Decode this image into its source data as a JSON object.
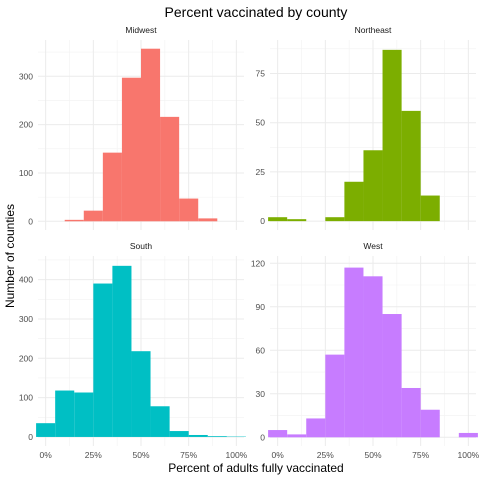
{
  "chart_data": {
    "type": "bar",
    "title": "Percent vaccinated by county",
    "xlabel": "Percent of adults fully vaccinated",
    "ylabel": "Number of counties",
    "x_tick_labels": [
      "0%",
      "25%",
      "50%",
      "75%",
      "100%"
    ],
    "x_ticks": [
      0,
      25,
      50,
      75,
      100
    ],
    "xlim": [
      -4,
      104
    ],
    "bin_width": 10,
    "grid": true,
    "legend": "none",
    "panels": [
      {
        "name": "Midwest",
        "color": "#F8766D",
        "ylim": [
          -18,
          375
        ],
        "y_ticks": [
          0,
          100,
          200,
          300
        ],
        "y_tick_labels": [
          "0",
          "100",
          "200",
          "300"
        ],
        "bins": [
          {
            "x0": 0,
            "x1": 10,
            "count": 0
          },
          {
            "x0": 10,
            "x1": 20,
            "count": 3
          },
          {
            "x0": 20,
            "x1": 30,
            "count": 22
          },
          {
            "x0": 30,
            "x1": 40,
            "count": 142
          },
          {
            "x0": 40,
            "x1": 50,
            "count": 297
          },
          {
            "x0": 50,
            "x1": 60,
            "count": 357
          },
          {
            "x0": 60,
            "x1": 70,
            "count": 216
          },
          {
            "x0": 70,
            "x1": 80,
            "count": 47
          },
          {
            "x0": 80,
            "x1": 90,
            "count": 6
          },
          {
            "x0": 90,
            "x1": 100,
            "count": 0
          }
        ]
      },
      {
        "name": "Northeast",
        "color": "#7CAE00",
        "ylim": [
          -4.5,
          92
        ],
        "y_ticks": [
          0,
          25,
          50,
          75
        ],
        "y_tick_labels": [
          "0",
          "25",
          "50",
          "75"
        ],
        "bins": [
          {
            "x0": -5,
            "x1": 5,
            "count": 2
          },
          {
            "x0": 5,
            "x1": 15,
            "count": 1
          },
          {
            "x0": 15,
            "x1": 25,
            "count": 0
          },
          {
            "x0": 25,
            "x1": 35,
            "count": 2
          },
          {
            "x0": 35,
            "x1": 45,
            "count": 20
          },
          {
            "x0": 45,
            "x1": 55,
            "count": 36
          },
          {
            "x0": 55,
            "x1": 65,
            "count": 87
          },
          {
            "x0": 65,
            "x1": 75,
            "count": 56
          },
          {
            "x0": 75,
            "x1": 85,
            "count": 13
          }
        ]
      },
      {
        "name": "South",
        "color": "#00BFC4",
        "ylim": [
          -23,
          460
        ],
        "y_ticks": [
          0,
          100,
          200,
          300,
          400
        ],
        "y_tick_labels": [
          "0",
          "100",
          "200",
          "300",
          "400"
        ],
        "bins": [
          {
            "x0": -5,
            "x1": 5,
            "count": 35
          },
          {
            "x0": 5,
            "x1": 15,
            "count": 118
          },
          {
            "x0": 15,
            "x1": 25,
            "count": 113
          },
          {
            "x0": 25,
            "x1": 35,
            "count": 390
          },
          {
            "x0": 35,
            "x1": 45,
            "count": 435
          },
          {
            "x0": 45,
            "x1": 55,
            "count": 218
          },
          {
            "x0": 55,
            "x1": 65,
            "count": 78
          },
          {
            "x0": 65,
            "x1": 75,
            "count": 15
          },
          {
            "x0": 75,
            "x1": 85,
            "count": 5
          },
          {
            "x0": 85,
            "x1": 95,
            "count": 2
          },
          {
            "x0": 95,
            "x1": 105,
            "count": 1
          }
        ]
      },
      {
        "name": "West",
        "color": "#C77CFF",
        "ylim": [
          -6,
          125
        ],
        "y_ticks": [
          0,
          30,
          60,
          90,
          120
        ],
        "y_tick_labels": [
          "0",
          "30",
          "60",
          "90",
          "120"
        ],
        "bins": [
          {
            "x0": -5,
            "x1": 5,
            "count": 5
          },
          {
            "x0": 5,
            "x1": 15,
            "count": 2
          },
          {
            "x0": 15,
            "x1": 25,
            "count": 13
          },
          {
            "x0": 25,
            "x1": 35,
            "count": 57
          },
          {
            "x0": 35,
            "x1": 45,
            "count": 117
          },
          {
            "x0": 45,
            "x1": 55,
            "count": 111
          },
          {
            "x0": 55,
            "x1": 65,
            "count": 85
          },
          {
            "x0": 65,
            "x1": 75,
            "count": 34
          },
          {
            "x0": 75,
            "x1": 85,
            "count": 19
          },
          {
            "x0": 85,
            "x1": 95,
            "count": 0
          },
          {
            "x0": 95,
            "x1": 105,
            "count": 3
          }
        ]
      }
    ]
  }
}
